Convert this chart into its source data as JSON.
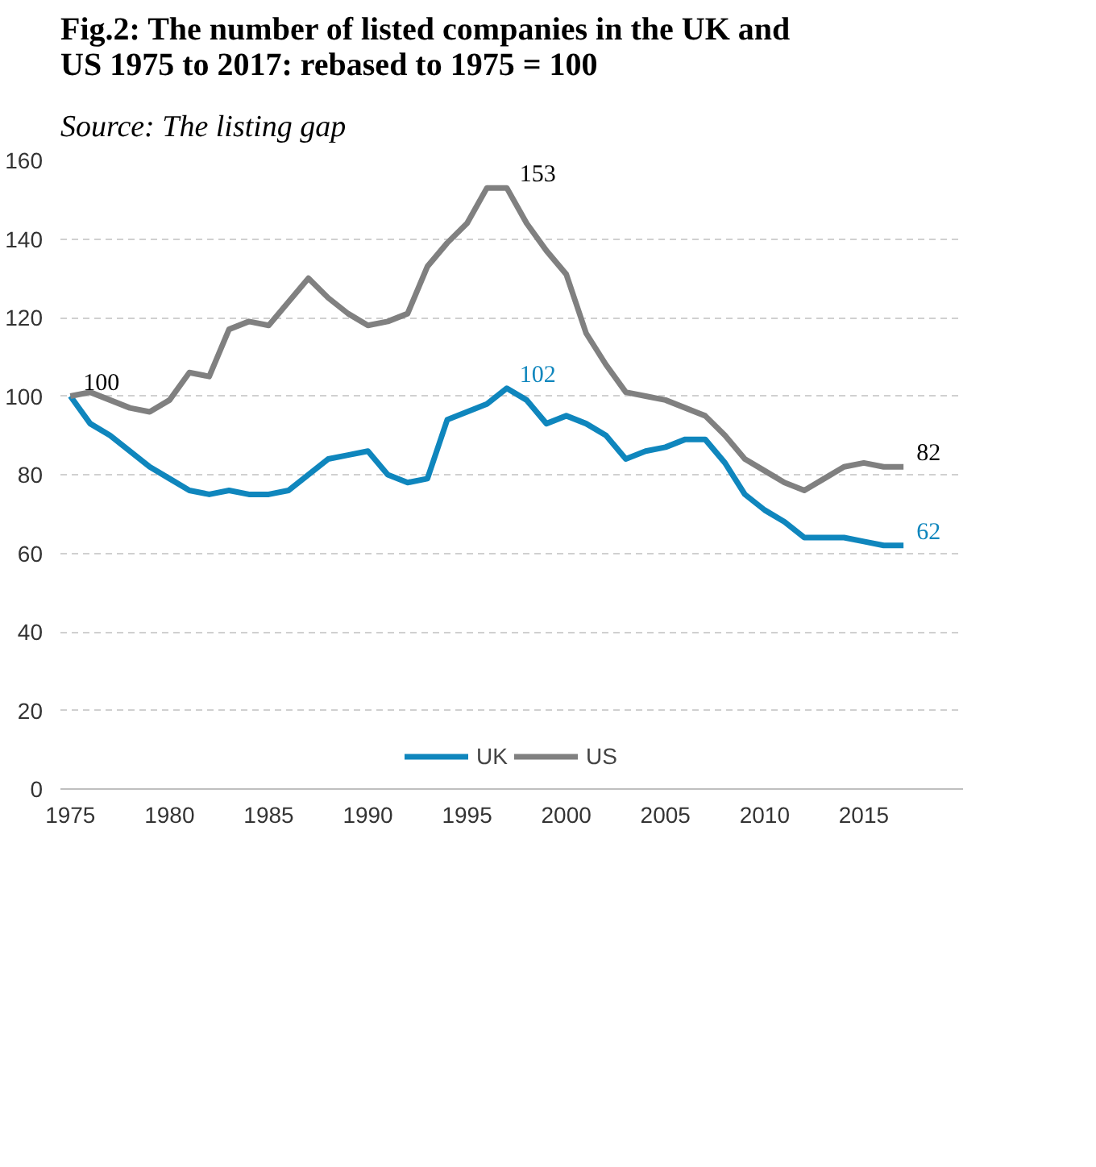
{
  "chart_data": {
    "type": "line",
    "title": "Fig.2:  The number of listed companies in the UK and US 1975 to 2017: rebased to 1975 = 100",
    "annotations": [
      "Source: The listing gap"
    ],
    "x": [
      1975,
      1976,
      1977,
      1978,
      1979,
      1980,
      1981,
      1982,
      1983,
      1984,
      1985,
      1986,
      1987,
      1988,
      1989,
      1990,
      1991,
      1992,
      1993,
      1994,
      1995,
      1996,
      1997,
      1998,
      1999,
      2000,
      2001,
      2002,
      2003,
      2004,
      2005,
      2006,
      2007,
      2008,
      2009,
      2010,
      2011,
      2012,
      2013,
      2014,
      2015,
      2016,
      2017
    ],
    "series": [
      {
        "name": "UK",
        "color": "#0f86bd",
        "values": [
          100,
          93,
          90,
          86,
          82,
          79,
          76,
          75,
          76,
          75,
          75,
          76,
          80,
          84,
          85,
          86,
          80,
          78,
          79,
          94,
          96,
          98,
          102,
          99,
          93,
          95,
          93,
          90,
          84,
          86,
          87,
          89,
          89,
          83,
          75,
          71,
          68,
          64,
          64,
          64,
          63,
          62,
          62
        ],
        "value_labels": [
          null,
          null,
          null,
          null,
          null,
          null,
          null,
          null,
          null,
          null,
          null,
          null,
          null,
          null,
          null,
          null,
          null,
          null,
          null,
          null,
          null,
          null,
          "102",
          null,
          null,
          null,
          null,
          null,
          null,
          null,
          null,
          null,
          null,
          null,
          null,
          null,
          null,
          null,
          null,
          null,
          null,
          null,
          "62"
        ]
      },
      {
        "name": "US",
        "color": "#808080",
        "values": [
          100,
          101,
          99,
          97,
          96,
          99,
          106,
          105,
          117,
          119,
          118,
          124,
          130,
          125,
          121,
          118,
          119,
          121,
          133,
          139,
          144,
          153,
          153,
          144,
          137,
          131,
          116,
          108,
          101,
          100,
          99,
          97,
          95,
          90,
          84,
          81,
          78,
          76,
          79,
          82,
          83,
          82,
          82
        ],
        "value_labels": [
          "100",
          null,
          null,
          null,
          null,
          null,
          null,
          null,
          null,
          null,
          null,
          null,
          null,
          null,
          null,
          null,
          null,
          null,
          null,
          null,
          null,
          null,
          "153",
          null,
          null,
          null,
          null,
          null,
          null,
          null,
          null,
          null,
          null,
          null,
          null,
          null,
          null,
          null,
          null,
          null,
          null,
          null,
          "82"
        ]
      }
    ],
    "xlim": [
      1974.5,
      2020
    ],
    "xticks": [
      1975,
      1980,
      1985,
      1990,
      1995,
      2000,
      2005,
      2010,
      2015
    ],
    "ylim": [
      0,
      160
    ],
    "yticks": [
      0,
      20,
      40,
      60,
      80,
      100,
      120,
      140,
      160
    ],
    "grid": "y",
    "legend": "bottom",
    "marker": "none",
    "line_style": "solid"
  }
}
